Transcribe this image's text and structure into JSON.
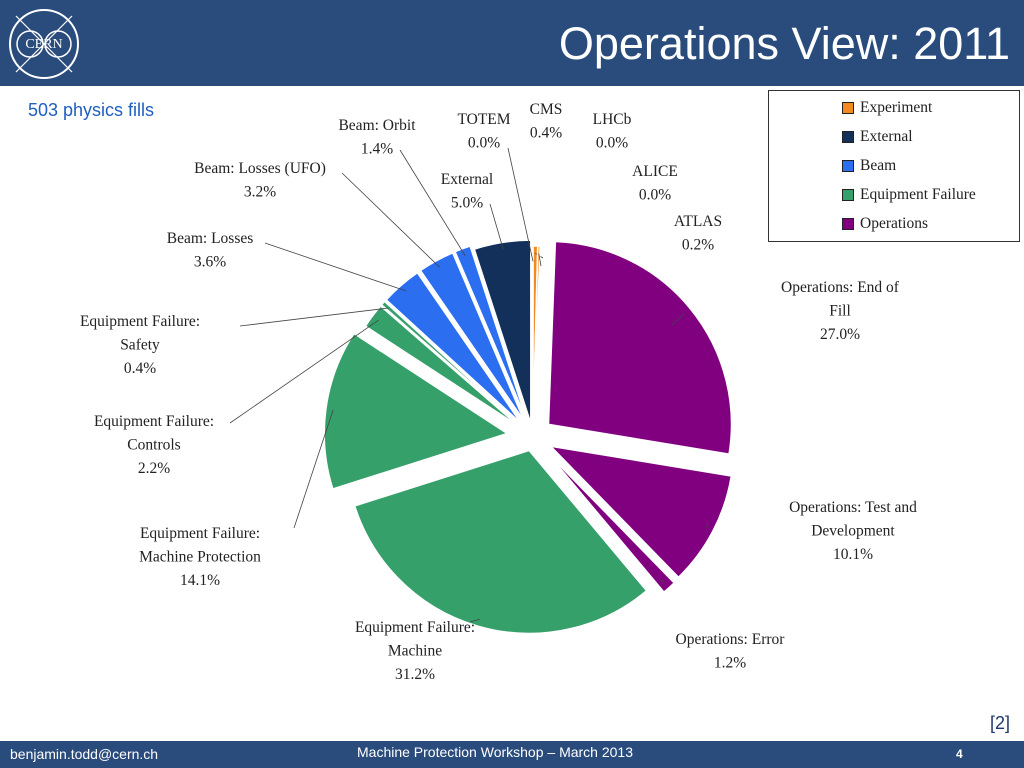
{
  "header": {
    "title": "Operations View: 2011",
    "logo_text": "CERN"
  },
  "subtitle": "503 physics fills",
  "legend": {
    "items": [
      {
        "label": "Experiment",
        "color": "#f28a21"
      },
      {
        "label": "External",
        "color": "#13305a"
      },
      {
        "label": "Beam",
        "color": "#2b6ef0"
      },
      {
        "label": "Equipment Failure",
        "color": "#36a06a"
      },
      {
        "label": "Operations",
        "color": "#800080"
      }
    ]
  },
  "chart_data": {
    "type": "pie",
    "slices": [
      {
        "label_lines": [
          "CMS"
        ],
        "value": 0.4,
        "value_text": "0.4%",
        "category": "Experiment",
        "color": "#f28a21"
      },
      {
        "label_lines": [
          "LHCb"
        ],
        "value": 0.0,
        "value_text": "0.0%",
        "category": "Experiment",
        "color": "#f28a21"
      },
      {
        "label_lines": [
          "ALICE"
        ],
        "value": 0.0,
        "value_text": "0.0%",
        "category": "Experiment",
        "color": "#f28a21"
      },
      {
        "label_lines": [
          "ATLAS"
        ],
        "value": 0.2,
        "value_text": "0.2%",
        "category": "Experiment",
        "color": "#f28a21"
      },
      {
        "label_lines": [
          "Operations: End of",
          "Fill"
        ],
        "value": 27.0,
        "value_text": "27.0%",
        "category": "Operations",
        "color": "#800080"
      },
      {
        "label_lines": [
          "Operations: Test and",
          "Development"
        ],
        "value": 10.1,
        "value_text": "10.1%",
        "category": "Operations",
        "color": "#800080"
      },
      {
        "label_lines": [
          "Operations: Error"
        ],
        "value": 1.2,
        "value_text": "1.2%",
        "category": "Operations",
        "color": "#800080"
      },
      {
        "label_lines": [
          "Equipment Failure:",
          "Machine"
        ],
        "value": 31.2,
        "value_text": "31.2%",
        "category": "Equipment Failure",
        "color": "#36a06a"
      },
      {
        "label_lines": [
          "Equipment Failure:",
          "Machine Protection"
        ],
        "value": 14.1,
        "value_text": "14.1%",
        "category": "Equipment Failure",
        "color": "#36a06a"
      },
      {
        "label_lines": [
          "Equipment Failure:",
          "Controls"
        ],
        "value": 2.2,
        "value_text": "2.2%",
        "category": "Equipment Failure",
        "color": "#36a06a"
      },
      {
        "label_lines": [
          "Equipment Failure:",
          "Safety"
        ],
        "value": 0.4,
        "value_text": "0.4%",
        "category": "Equipment Failure",
        "color": "#36a06a"
      },
      {
        "label_lines": [
          "Beam: Losses"
        ],
        "value": 3.6,
        "value_text": "3.6%",
        "category": "Beam",
        "color": "#2b6ef0"
      },
      {
        "label_lines": [
          "Beam: Losses (UFO)"
        ],
        "value": 3.2,
        "value_text": "3.2%",
        "category": "Beam",
        "color": "#2b6ef0"
      },
      {
        "label_lines": [
          "Beam: Orbit"
        ],
        "value": 1.4,
        "value_text": "1.4%",
        "category": "Beam",
        "color": "#2b6ef0"
      },
      {
        "label_lines": [
          "External"
        ],
        "value": 5.0,
        "value_text": "5.0%",
        "category": "External",
        "color": "#13305a"
      },
      {
        "label_lines": [
          "TOTEM"
        ],
        "value": 0.0,
        "value_text": "0.0%",
        "category": "Experiment",
        "color": "#f28a21"
      }
    ]
  },
  "reference": "[2]",
  "footer": {
    "email": "benjamin.todd@cern.ch",
    "center": "Machine Protection Workshop – March 2013",
    "page": "4"
  }
}
